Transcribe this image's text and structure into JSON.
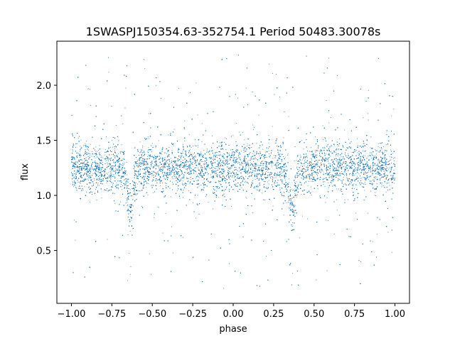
{
  "chart_data": {
    "type": "scatter",
    "title": "1SWASPJ150354.63-352754.1 Period 50483.30078s",
    "xlabel": "phase",
    "ylabel": "flux",
    "xlim": [
      -1.09,
      1.09
    ],
    "ylim": [
      0.02,
      2.4
    ],
    "xticks": [
      -1.0,
      -0.75,
      -0.5,
      -0.25,
      0.0,
      0.25,
      0.5,
      0.75,
      1.0
    ],
    "xtick_labels": [
      "−1.00",
      "−0.75",
      "−0.50",
      "−0.25",
      "0.00",
      "0.25",
      "0.50",
      "0.75",
      "1.00"
    ],
    "yticks": [
      0.5,
      1.0,
      1.5,
      2.0
    ],
    "ytick_labels": [
      "0.5",
      "1.0",
      "1.5",
      "2.0"
    ],
    "grid": false,
    "marker_color": "#1f77b4",
    "x_range": [
      -1.0,
      1.0
    ],
    "baseline_flux": 1.25,
    "eclipse_minima": [
      {
        "phase": -0.635,
        "flux": 0.88
      },
      {
        "phase": 0.365,
        "flux": 0.88
      }
    ],
    "point_count": 20000
  }
}
